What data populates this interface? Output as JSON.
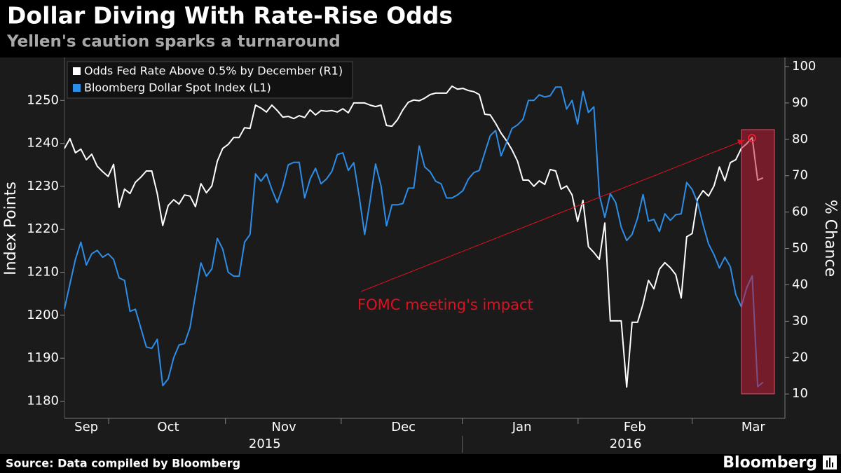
{
  "chart_data": {
    "type": "line",
    "title": "Dollar Diving With Rate-Rise Odds",
    "subtitle": "Yellen's caution sparks a turnaround",
    "y_label": "Index Points",
    "y2_label": "% Chance",
    "annotation": "FOMC meeting's impact",
    "source": "Source: Data compiled by Bloomberg",
    "brand": "Bloomberg",
    "xlim": [
      0,
      132
    ],
    "month_boundaries": [
      8.1,
      29.5,
      50.7,
      72.9,
      94.1,
      115
    ],
    "month_labels": [
      {
        "value": 4,
        "label": "Sep"
      },
      {
        "value": 19,
        "label": "Oct"
      },
      {
        "value": 40.2,
        "label": "Nov"
      },
      {
        "value": 62.1,
        "label": "Dec"
      },
      {
        "value": 83.8,
        "label": "Jan"
      },
      {
        "value": 104.5,
        "label": "Feb"
      },
      {
        "value": 126.2,
        "label": "Mar"
      }
    ],
    "year_labels": [
      {
        "value": 36.7,
        "label": "2015"
      },
      {
        "value": 102.8,
        "label": "2016"
      }
    ],
    "ylim": [
      1176,
      1260
    ],
    "yticks": [
      1180,
      1190,
      1200,
      1210,
      1220,
      1230,
      1240,
      1250
    ],
    "y2lim": [
      3.3,
      102.5
    ],
    "y2ticks": [
      10,
      20,
      30,
      40,
      50,
      60,
      70,
      80,
      90,
      100
    ],
    "grid": false,
    "legend": "top-left",
    "x": [
      0,
      1,
      2,
      3,
      4,
      5,
      6,
      7,
      8,
      9,
      10,
      11,
      12,
      13,
      14,
      15,
      16,
      17,
      18,
      19,
      20,
      21,
      22,
      23,
      24,
      25,
      26,
      27,
      28,
      29,
      30,
      31,
      32,
      33,
      34,
      35,
      36,
      37,
      38,
      39,
      40,
      41,
      42,
      43,
      44,
      45,
      46,
      47,
      48,
      49,
      50,
      51,
      52,
      53,
      54,
      55,
      56,
      57,
      58,
      59,
      60,
      61,
      62,
      63,
      64,
      65,
      66,
      67,
      68,
      69,
      70,
      71,
      72,
      73,
      74,
      75,
      76,
      77,
      78,
      79,
      80,
      81,
      82,
      83,
      84,
      85,
      86,
      87,
      88,
      89,
      90,
      91,
      92,
      93,
      94,
      95,
      96,
      97,
      98,
      99,
      100,
      101,
      102,
      103,
      104,
      105,
      106,
      107,
      108,
      109,
      110,
      111,
      112,
      113,
      114,
      115,
      116,
      117,
      118,
      119,
      120,
      121,
      122,
      123,
      124,
      125,
      126,
      127,
      128
    ],
    "series": [
      {
        "name": "Odds Fed Rate Above 0.5% by December (R1)",
        "color": "#ffffff",
        "axis": "y2",
        "values": [
          77.5,
          80.2,
          76.3,
          77.3,
          74.4,
          75.9,
          72.6,
          71.1,
          69.8,
          73.1,
          61.3,
          66.3,
          65.1,
          68.2,
          69.6,
          71.3,
          71.3,
          65.1,
          56.3,
          61.8,
          63.4,
          62.2,
          64.7,
          64.4,
          61.5,
          67.8,
          65.3,
          67.2,
          74.0,
          77.5,
          78.6,
          80.5,
          80.5,
          83.2,
          83.0,
          89.4,
          88.6,
          87.5,
          89.4,
          87.9,
          86.1,
          86.3,
          85.7,
          86.5,
          86.0,
          88.1,
          86.7,
          87.9,
          87.7,
          87.9,
          87.5,
          88.4,
          87.3,
          90.0,
          90.0,
          90.0,
          89.4,
          89.0,
          89.4,
          83.8,
          83.6,
          85.4,
          88.1,
          90.2,
          90.8,
          90.6,
          91.3,
          92.3,
          92.7,
          92.7,
          92.7,
          94.6,
          93.8,
          94.0,
          93.4,
          93.1,
          92.3,
          86.9,
          86.7,
          84.4,
          81.7,
          79.6,
          77.1,
          74.0,
          68.8,
          68.8,
          67.1,
          68.6,
          67.6,
          71.7,
          71.3,
          66.3,
          67.2,
          64.7,
          57.4,
          63.2,
          50.5,
          48.9,
          47.0,
          57.0,
          30.1,
          30.1,
          30.1,
          11.9,
          29.7,
          29.7,
          34.7,
          41.2,
          38.9,
          44.3,
          46.1,
          44.7,
          42.8,
          36.4,
          53.2,
          54.1,
          63.6,
          65.9,
          64.4,
          67.2,
          72.4,
          68.6,
          73.6,
          74.4,
          77.5,
          78.8,
          80.5,
          68.8,
          69.4
        ]
      },
      {
        "name": "Bloomberg Dollar Spot Index (L1)",
        "color": "#2d8ee8",
        "axis": "y",
        "values": [
          1201.5,
          1207.3,
          1213.0,
          1217.0,
          1211.7,
          1214.3,
          1215.1,
          1213.5,
          1214.3,
          1213.0,
          1208.7,
          1208.1,
          1200.9,
          1201.4,
          1197.0,
          1192.6,
          1192.3,
          1194.4,
          1183.6,
          1185.2,
          1190.1,
          1193.1,
          1193.4,
          1197.1,
          1204.8,
          1212.2,
          1209.1,
          1210.8,
          1217.9,
          1215.4,
          1210.0,
          1209.1,
          1209.1,
          1217.0,
          1218.8,
          1232.9,
          1231.2,
          1232.9,
          1229.3,
          1226.2,
          1229.9,
          1235.0,
          1235.6,
          1235.6,
          1227.3,
          1231.7,
          1234.2,
          1230.6,
          1231.7,
          1233.5,
          1237.4,
          1237.8,
          1233.7,
          1235.5,
          1227.7,
          1218.8,
          1226.7,
          1235.2,
          1230.1,
          1220.8,
          1225.7,
          1225.7,
          1226.0,
          1229.6,
          1229.6,
          1239.4,
          1234.5,
          1233.4,
          1231.2,
          1230.6,
          1227.3,
          1227.3,
          1228.0,
          1229.0,
          1231.7,
          1233.2,
          1233.7,
          1237.8,
          1241.8,
          1243.0,
          1237.1,
          1240.2,
          1243.5,
          1244.3,
          1245.6,
          1250.0,
          1250.0,
          1251.3,
          1250.8,
          1251.1,
          1253.1,
          1253.1,
          1248.0,
          1250.0,
          1244.5,
          1252.1,
          1247.2,
          1248.5,
          1228.0,
          1222.8,
          1228.3,
          1226.2,
          1220.5,
          1217.4,
          1218.8,
          1222.6,
          1228.1,
          1221.9,
          1222.3,
          1219.5,
          1223.6,
          1222.1,
          1223.4,
          1223.6,
          1230.9,
          1229.3,
          1226.2,
          1221.1,
          1216.6,
          1214.1,
          1211.0,
          1213.5,
          1211.3,
          1204.8,
          1202.0,
          1206.4,
          1209.2,
          1183.4,
          1184.4
        ]
      }
    ]
  }
}
